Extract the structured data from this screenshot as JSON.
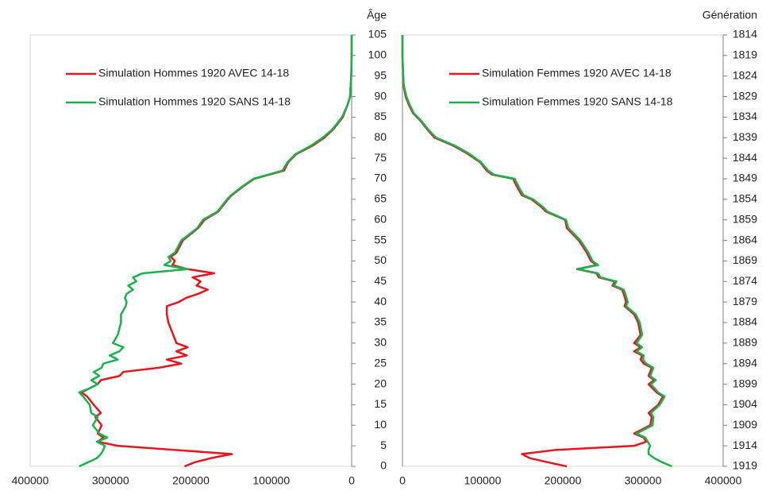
{
  "chart_data": [
    {
      "type": "line",
      "orientation": "horizontal",
      "y_axis_label": "Âge",
      "y_axis_side": "right",
      "legend": "upper left",
      "xlim": [
        400000,
        0
      ],
      "xticks": [
        400000,
        300000,
        200000,
        100000,
        0
      ],
      "ylim": [
        0,
        105
      ],
      "yticks": [
        0,
        5,
        10,
        15,
        20,
        25,
        30,
        35,
        40,
        45,
        50,
        55,
        60,
        65,
        70,
        75,
        80,
        85,
        90,
        95,
        100,
        105
      ],
      "y": [
        0,
        1,
        2,
        3,
        4,
        5,
        6,
        7,
        8,
        10,
        12,
        13,
        15,
        17,
        18,
        19,
        20,
        21,
        22,
        23,
        24,
        25,
        26,
        27,
        28,
        29,
        30,
        32,
        35,
        37,
        39,
        40,
        41,
        42,
        43,
        44,
        45,
        46,
        47,
        48,
        49,
        50,
        51,
        52,
        55,
        58,
        60,
        62,
        65,
        66,
        68,
        70,
        72,
        74,
        76,
        78,
        80,
        82,
        85,
        88,
        90,
        95,
        100,
        105
      ],
      "series": [
        {
          "name": "Simulation Hommes 1920  AVEC 14-18",
          "color": "#e8161b",
          "values": [
            208000,
            195000,
            175000,
            149000,
            220000,
            291000,
            316000,
            309000,
            316000,
            311000,
            319000,
            312000,
            321000,
            329000,
            336000,
            326000,
            316000,
            312000,
            289000,
            284000,
            240000,
            212000,
            230000,
            205000,
            218000,
            204000,
            218000,
            222000,
            228000,
            230000,
            230000,
            215000,
            206000,
            191000,
            179000,
            193000,
            188000,
            198000,
            171000,
            204000,
            223000,
            220000,
            225000,
            218000,
            210000,
            191000,
            183000,
            166000,
            154000,
            149000,
            136000,
            121000,
            84000,
            79000,
            69000,
            49000,
            34000,
            23000,
            11000,
            5000,
            2000,
            500,
            0,
            0
          ]
        },
        {
          "name": "Simulation Hommes 1920  SANS 14-18",
          "color": "#19b34c",
          "values": [
            339000,
            328000,
            317000,
            312000,
            309000,
            307000,
            317000,
            304000,
            314000,
            322000,
            316000,
            324000,
            326000,
            334000,
            339000,
            326000,
            316000,
            324000,
            314000,
            321000,
            311000,
            309000,
            291000,
            301000,
            289000,
            284000,
            297000,
            291000,
            287000,
            287000,
            281000,
            280000,
            282000,
            280000,
            272000,
            278000,
            268000,
            272000,
            260000,
            204000,
            233000,
            225000,
            228000,
            220000,
            212000,
            192000,
            185000,
            167000,
            155000,
            150000,
            137000,
            122000,
            86000,
            80000,
            70000,
            51000,
            36000,
            24000,
            12000,
            5000,
            2000,
            500,
            0,
            0
          ]
        }
      ]
    },
    {
      "type": "line",
      "orientation": "horizontal",
      "y2_axis_label": "Génération",
      "legend": "upper left",
      "xlim": [
        0,
        400000
      ],
      "xticks": [
        0,
        100000,
        200000,
        300000,
        400000
      ],
      "ylim": [
        0,
        105
      ],
      "y2lim": [
        1919,
        1814
      ],
      "y2ticks": [
        1814,
        1819,
        1824,
        1829,
        1834,
        1839,
        1844,
        1849,
        1854,
        1859,
        1864,
        1869,
        1874,
        1879,
        1884,
        1889,
        1894,
        1899,
        1904,
        1909,
        1914,
        1919
      ],
      "y": [
        0,
        1,
        2,
        3,
        4,
        5,
        6,
        7,
        8,
        10,
        12,
        13,
        15,
        17,
        18,
        20,
        21,
        22,
        24,
        25,
        26,
        27,
        28,
        29,
        30,
        32,
        35,
        37,
        39,
        40,
        42,
        43,
        44,
        45,
        46,
        47,
        48,
        49,
        50,
        52,
        55,
        58,
        60,
        62,
        63,
        65,
        66,
        68,
        70,
        71,
        72,
        74,
        76,
        78,
        80,
        82,
        84,
        86,
        88,
        90,
        93,
        100,
        105
      ],
      "series": [
        {
          "name": "Simulation Femmes 1920  AVEC 14-18",
          "color": "#e8161b",
          "values": [
            205000,
            181000,
            159000,
            149000,
            191000,
            289000,
            304000,
            301000,
            289000,
            309000,
            311000,
            307000,
            319000,
            325000,
            317000,
            307000,
            314000,
            307000,
            311000,
            301000,
            297000,
            299000,
            289000,
            297000,
            289000,
            297000,
            294000,
            289000,
            277000,
            279000,
            276000,
            274000,
            262000,
            265000,
            245000,
            242000,
            218000,
            242000,
            235000,
            230000,
            220000,
            205000,
            203000,
            179000,
            174000,
            161000,
            149000,
            143000,
            138000,
            112000,
            105000,
            97000,
            82000,
            64000,
            40000,
            31000,
            23000,
            13000,
            8000,
            4000,
            1000,
            0,
            0
          ]
        },
        {
          "name": "Simulation Femmes 1920  SANS 14-18",
          "color": "#19b34c",
          "values": [
            336000,
            324000,
            314000,
            307000,
            307000,
            309000,
            306000,
            303000,
            292000,
            312000,
            313000,
            310000,
            321000,
            327000,
            319000,
            310000,
            316000,
            309000,
            313000,
            304000,
            300000,
            301000,
            292000,
            299000,
            292000,
            299000,
            296000,
            291000,
            279000,
            281000,
            278000,
            276000,
            264000,
            267000,
            247000,
            244000,
            219000,
            244000,
            237000,
            232000,
            222000,
            207000,
            204000,
            181000,
            176000,
            163000,
            151000,
            145000,
            140000,
            114000,
            107000,
            98000,
            84000,
            66000,
            42000,
            32000,
            24000,
            14000,
            9000,
            5000,
            1500,
            0,
            0
          ]
        }
      ]
    }
  ]
}
